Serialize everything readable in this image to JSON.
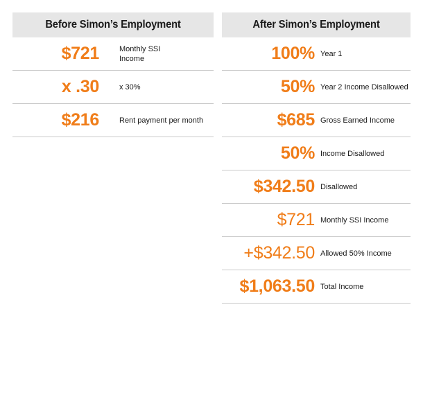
{
  "before": {
    "title": "Before Simon’s Employment",
    "rows": [
      {
        "value": "$721",
        "label": "Monthly SSI Income"
      },
      {
        "value": "x .30",
        "label": "x 30%"
      },
      {
        "value": "$216",
        "label": "Rent payment per month"
      }
    ]
  },
  "after": {
    "title": "After Simon’s Employment",
    "rows": [
      {
        "value": "100%",
        "label": "Year 1"
      },
      {
        "value": "50%",
        "label": "Year 2 Income Disallowed"
      },
      {
        "value": "$685",
        "label": "Gross Earned Income"
      },
      {
        "value": "50%",
        "label": "Income Disallowed"
      },
      {
        "value": "$342.50",
        "label": "Disallowed"
      },
      {
        "value": "$721",
        "label": "Monthly SSI Income"
      },
      {
        "value": "+$342.50",
        "label": "Allowed 50% Income"
      },
      {
        "value": "$1,063.50",
        "label": "Total Income"
      }
    ]
  },
  "colors": {
    "accent": "#f07d19",
    "header_bg": "#e6e6e6",
    "divider": "#c9c9c9"
  }
}
